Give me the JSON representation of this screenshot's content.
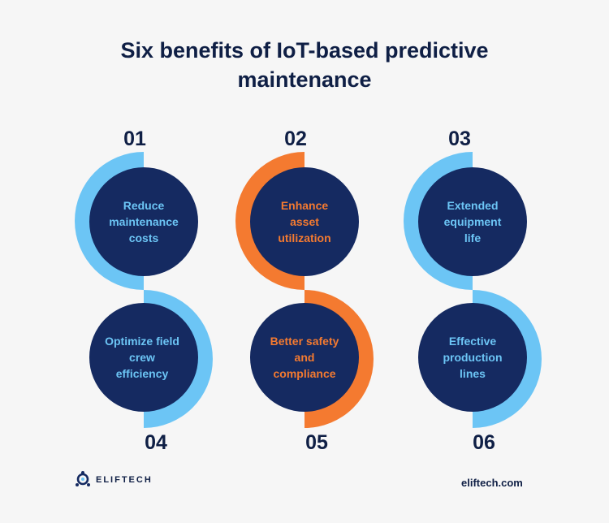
{
  "title_line1": "Six benefits of IoT-based predictive",
  "title_line2": "maintenance",
  "benefits": [
    {
      "number": "01",
      "label_lines": [
        "Reduce",
        "maintenance",
        "costs"
      ],
      "text_color": "#6cc5f5",
      "arc_color": "#6cc5f5"
    },
    {
      "number": "02",
      "label_lines": [
        "Enhance",
        "asset",
        "utilization"
      ],
      "text_color": "#f47a30",
      "arc_color": "#f47a30"
    },
    {
      "number": "03",
      "label_lines": [
        "Extended",
        "equipment",
        "life"
      ],
      "text_color": "#6cc5f5",
      "arc_color": "#6cc5f5"
    },
    {
      "number": "04",
      "label_lines": [
        "Optimize field",
        "crew",
        "efficiency"
      ],
      "text_color": "#6cc5f5",
      "arc_color": "#6cc5f5"
    },
    {
      "number": "05",
      "label_lines": [
        "Better safety",
        "and",
        "compliance"
      ],
      "text_color": "#f47a30",
      "arc_color": "#f47a30"
    },
    {
      "number": "06",
      "label_lines": [
        "Effective",
        "production",
        "lines"
      ],
      "text_color": "#6cc5f5",
      "arc_color": "#6cc5f5"
    }
  ],
  "brand_name": "ELIFTECH",
  "brand_url": "eliftech.com",
  "colors": {
    "navy": "#152a61",
    "text": "#0f1f45",
    "light_blue": "#6cc5f5",
    "orange": "#f47a30"
  }
}
